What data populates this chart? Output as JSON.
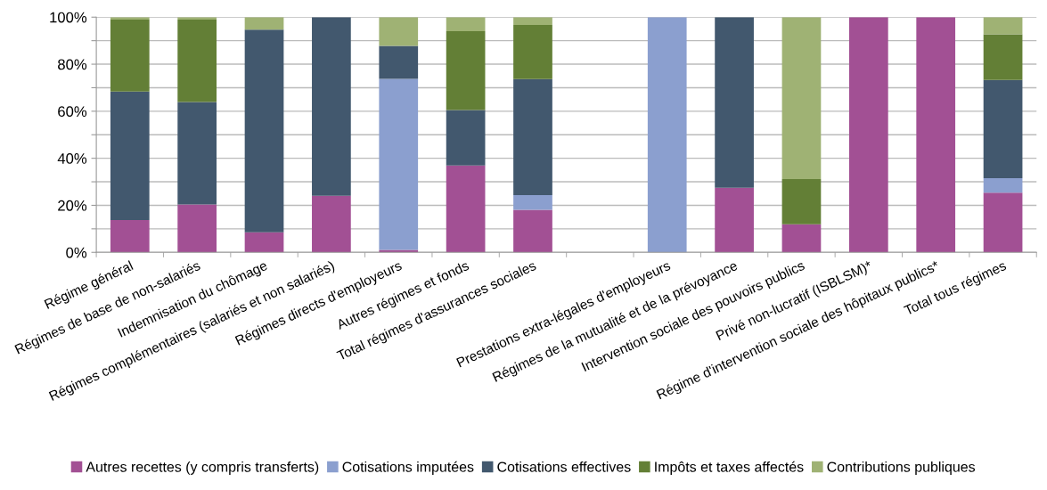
{
  "chart_data": {
    "type": "bar",
    "stacked": true,
    "categories": [
      "Régime général",
      "Régimes de base de non-salariés",
      "Indemnisation du chômage",
      "Régimes complémentaires (salariés et non salariés)",
      "Régimes directs d'employeurs",
      "Autres régimes et fonds",
      "Total régimes d'assurances sociales",
      null,
      "Prestations extra-légales d'employeurs",
      "Régimes de la mutualité et de la prévoyance",
      "Intervention sociale des pouvoirs publics",
      "Privé non-lucratif (ISBLSM)*",
      "Régime d'intervention sociale des hôpitaux publics*",
      "Total tous régimes"
    ],
    "series": [
      {
        "name": "Autres recettes (y compris transferts)",
        "color": "#a25094",
        "values": [
          13.7,
          20.4,
          8.5,
          24.1,
          1,
          36.9,
          18.1,
          null,
          0,
          27.5,
          11.9,
          100,
          100,
          25.4
        ]
      },
      {
        "name": "Cotisations imputées",
        "color": "#8b9fcf",
        "values": [
          0,
          0,
          0,
          0,
          72.8,
          0,
          6.2,
          null,
          100,
          0,
          0,
          0,
          0,
          6.1
        ]
      },
      {
        "name": "Cotisations effectives",
        "color": "#42586e",
        "values": [
          54.7,
          43.5,
          86.2,
          75.9,
          14,
          23.6,
          49.4,
          null,
          0,
          72.5,
          0,
          0,
          0,
          41.8
        ]
      },
      {
        "name": "Impôts et taxes affectés",
        "color": "#637f36",
        "values": [
          30.6,
          35.1,
          0,
          0,
          0,
          33.5,
          23,
          null,
          0,
          0,
          19.3,
          0,
          0,
          19.4
        ]
      },
      {
        "name": "Contributions publiques",
        "color": "#9fb274",
        "values": [
          1,
          1,
          5.3,
          0,
          12.2,
          6,
          3.3,
          null,
          0,
          0,
          68.8,
          0,
          0,
          7.3
        ]
      }
    ],
    "ylim": [
      0,
      100
    ],
    "yticks": [
      {
        "value": 0,
        "label": "0%"
      },
      {
        "value": 10,
        "label": null
      },
      {
        "value": 20,
        "label": "20%"
      },
      {
        "value": 30,
        "label": null
      },
      {
        "value": 40,
        "label": "40%"
      },
      {
        "value": 50,
        "label": null
      },
      {
        "value": 60,
        "label": "60%"
      },
      {
        "value": 70,
        "label": null
      },
      {
        "value": 80,
        "label": "80%"
      },
      {
        "value": 90,
        "label": null
      },
      {
        "value": 100,
        "label": "100%"
      }
    ],
    "grid": "y",
    "legend": "bottom"
  }
}
